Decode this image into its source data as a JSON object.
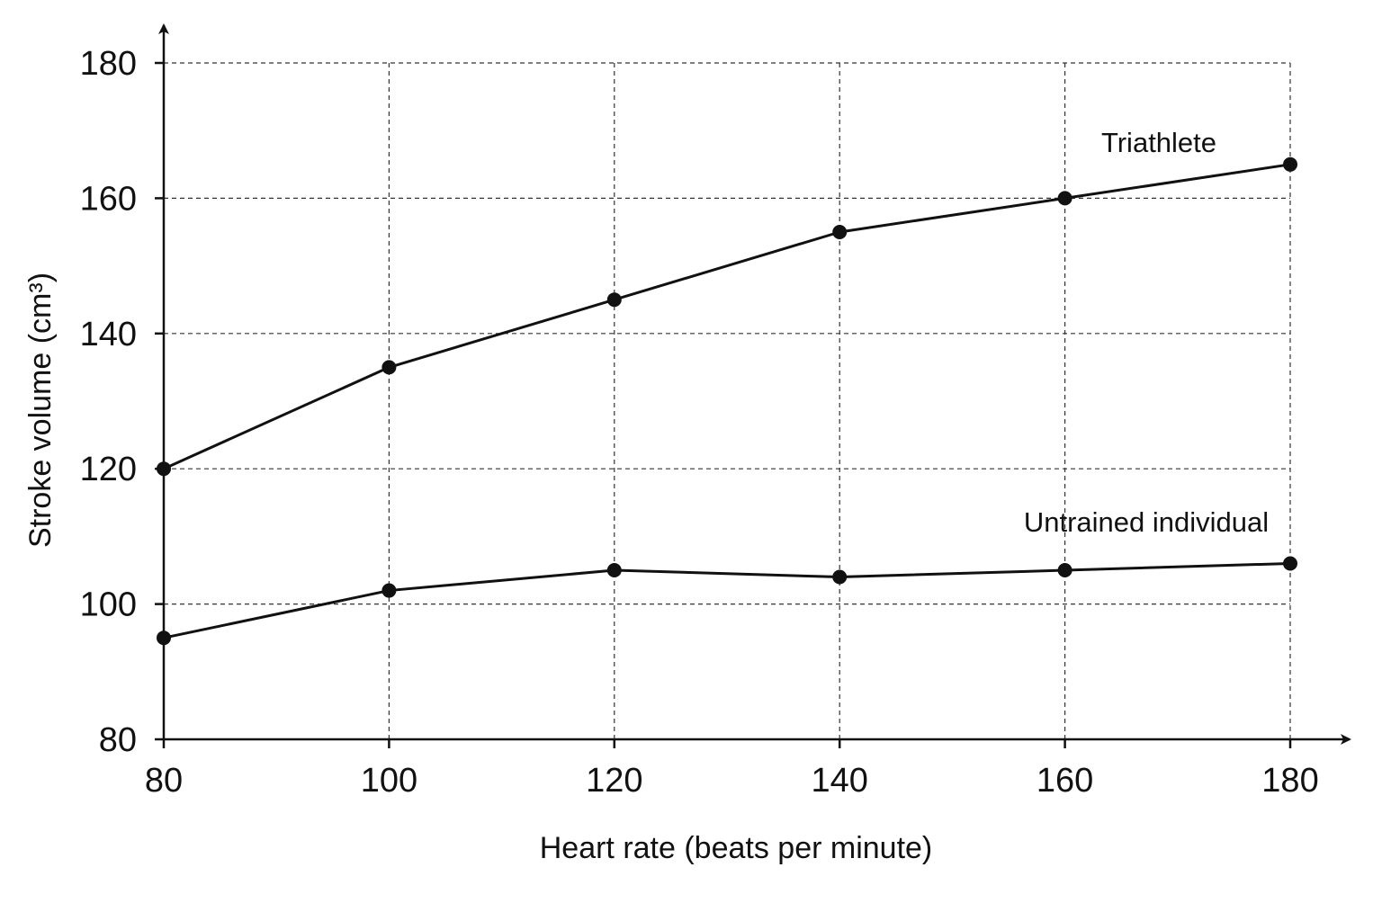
{
  "chart_data": {
    "type": "line",
    "title": "",
    "xlabel": "Heart rate (beats per minute)",
    "ylabel": "Stroke volume (cm³)",
    "xlim": [
      80,
      180
    ],
    "ylim": [
      80,
      180
    ],
    "x_ticks": [
      80,
      100,
      120,
      140,
      160,
      180
    ],
    "y_ticks": [
      80,
      100,
      120,
      140,
      160,
      180
    ],
    "grid": true,
    "x": [
      80,
      100,
      120,
      140,
      160,
      180
    ],
    "series": [
      {
        "name": "Triathlete",
        "values": [
          120,
          135,
          145,
          155,
          160,
          165
        ]
      },
      {
        "name": "Untrained individual",
        "values": [
          95,
          102,
          105,
          104,
          105,
          106
        ]
      }
    ]
  }
}
